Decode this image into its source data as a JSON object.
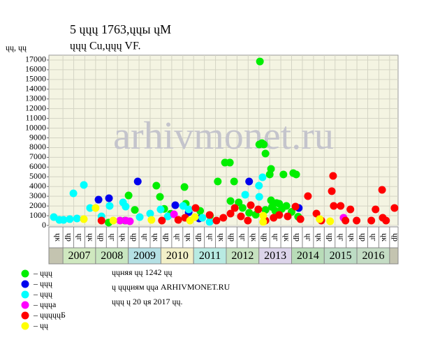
{
  "chart_data": {
    "type": "scatter",
    "title": "5 ųųų 1763,ųųы ųМ",
    "subtitle": "ųųų Cu,ųųų VF.",
    "y_unit_label": "ųų, ųų",
    "watermark": "arhivmonet.ru",
    "xlim": [
      2006.57,
      2017.26
    ],
    "ylim": [
      0,
      17500
    ],
    "yticks": [
      0,
      1000,
      2000,
      3000,
      4000,
      5000,
      6000,
      7000,
      8000,
      9000,
      10000,
      11000,
      12000,
      13000,
      14000,
      15000,
      16000,
      17000
    ],
    "xticks": [
      2007,
      2007.33,
      2007.67,
      2008,
      2008.33,
      2008.67,
      2009,
      2009.33,
      2009.67,
      2010,
      2010.33,
      2010.67,
      2011,
      2011.33,
      2011.67,
      2012,
      2012.33,
      2012.67,
      2013,
      2013.33,
      2013.67,
      2014,
      2014.33,
      2014.67,
      2015,
      2015.33,
      2015.67,
      2016,
      2016.33,
      2016.67,
      2017
    ],
    "grid": true,
    "period_x": [
      2006.83,
      2007.17,
      2007.5,
      2007.83,
      2008.17,
      2008.5,
      2008.83,
      2009.17,
      2009.5,
      2009.83,
      2010.17,
      2010.5,
      2010.83,
      2011.17,
      2011.5,
      2011.83,
      2012.17,
      2012.5,
      2012.83,
      2013.17,
      2013.5,
      2013.83,
      2014.17,
      2014.5,
      2014.83,
      2015.17,
      2015.5,
      2015.83,
      2016.17,
      2016.5,
      2016.83,
      2017.17
    ],
    "period_labels": [
      "ųк",
      "ųр",
      "ųг",
      "ųк",
      "ųр",
      "ųг",
      "ųк",
      "ųр",
      "ųг",
      "ųк",
      "ųр",
      "ųг",
      "ųк",
      "ųр",
      "ųг",
      "ųк",
      "ųр",
      "ųг",
      "ųк",
      "ųр",
      "ųг",
      "ųк",
      "ųр",
      "ųг",
      "ųк",
      "ųр",
      "ųг",
      "ųк",
      "ųр",
      "ųг",
      "ųк",
      "ųр"
    ],
    "years": [
      2007,
      2008,
      2009,
      2010,
      2011,
      2012,
      2013,
      2014,
      2015,
      2016
    ],
    "year_colors": [
      "#cfe8bf",
      "#c8e6c0",
      "#b4e0e4",
      "#f2f0c8",
      "#b8eae2",
      "#c6e2c0",
      "#dcd4ea",
      "#b8dcb8",
      "#bcdcc4",
      "#c4dcc4"
    ],
    "series": [
      {
        "name": "– ųųų",
        "color": "#00ee00",
        "x": [
          2013.03,
          2013.09,
          2013.15,
          2013.01,
          2013.2,
          2011.96,
          2012.11,
          2013.37,
          2013.33,
          2013.75,
          2014.05,
          2014.14,
          2011.74,
          2012.24,
          2009.86,
          2010.72,
          2009.01,
          2009.97,
          2010.76,
          2013.37,
          2012.13,
          2012.38,
          2013.54,
          2013.62,
          2013.84,
          2008.9,
          2010.3,
          2011.5,
          2012.5,
          2012.7,
          2013.4,
          2013.5,
          2014.0,
          2014.2,
          2009.2,
          2010.1,
          2011.2,
          2012.9,
          2013.2,
          2013.7,
          2008.4
        ],
        "values": [
          16850,
          8460,
          8320,
          8320,
          7390,
          6460,
          6460,
          5810,
          5240,
          5240,
          5380,
          5240,
          4520,
          4520,
          4090,
          3950,
          3080,
          2940,
          2230,
          2580,
          2510,
          2370,
          2300,
          2230,
          2010,
          500,
          1200,
          1000,
          1800,
          1300,
          1900,
          1500,
          1400,
          900,
          1600,
          1700,
          1500,
          1100,
          1600,
          1700,
          300
        ]
      },
      {
        "name": "– ųųų",
        "color": "#0000ee",
        "x": [
          2008.09,
          2008.41,
          2009.29,
          2010.44,
          2010.85,
          2012.7,
          2014.22,
          2011.17
        ],
        "values": [
          2650,
          2800,
          4520,
          2080,
          1360,
          4520,
          1790,
          720
        ]
      },
      {
        "name": "– ųųų",
        "color": "#00ffff",
        "x": [
          2006.72,
          2007.32,
          2007.64,
          2013.11,
          2013.0,
          2012.58,
          2013.01,
          2008.84,
          2007.83,
          2008.43,
          2007.02,
          2007.21,
          2008.92,
          2009.99,
          2010.68,
          2010.85,
          2011.49,
          2006.89,
          2007.43,
          2008.18,
          2009.35,
          2010.21,
          2009.67,
          2011.27
        ],
        "values": [
          860,
          3300,
          4160,
          4950,
          4090,
          3160,
          2940,
          2370,
          1790,
          2010,
          570,
          650,
          1940,
          1650,
          2010,
          1650,
          360,
          570,
          720,
          930,
          860,
          930,
          1220,
          790
        ]
      },
      {
        "name": "– ųųųа",
        "color": "#ff00ff",
        "x": [
          2008.75,
          2008.92,
          2009.05,
          2010.4,
          2015.59
        ],
        "values": [
          500,
          500,
          430,
          1150,
          790
        ]
      },
      {
        "name": "– ųųųųųБ",
        "color": "#ff0000",
        "x": [
          2015.27,
          2015.23,
          2016.77,
          2017.15,
          2014.5,
          2014.12,
          2012.75,
          2015.29,
          2015.5,
          2015.8,
          2016.57,
          2012.98,
          2012.26,
          2011.06,
          2008.18,
          2010.03,
          2010.53,
          2011.49,
          2011.91,
          2012.13,
          2012.45,
          2013.45,
          2013.62,
          2013.88,
          2014.27,
          2014.76,
          2014.91,
          2015.65,
          2015.99,
          2016.44,
          2016.79,
          2016.89,
          2012.66,
          2013.2,
          2011.7,
          2010.74
        ],
        "values": [
          5090,
          3520,
          3660,
          1790,
          3010,
          1940,
          2080,
          2010,
          2010,
          1650,
          1650,
          1650,
          1790,
          1790,
          500,
          500,
          570,
          1080,
          790,
          1220,
          930,
          790,
          1080,
          930,
          650,
          1220,
          500,
          500,
          500,
          500,
          790,
          500,
          500,
          500,
          500,
          790
        ]
      },
      {
        "name": "– ųų",
        "color": "#ffff00",
        "x": [
          2007.64,
          2008.0,
          2008.54,
          2009.71,
          2010.89,
          2011.04,
          2013.13,
          2013.13,
          2014.86,
          2015.18
        ],
        "values": [
          650,
          1790,
          500,
          570,
          500,
          860,
          1000,
          360,
          650,
          430
        ]
      }
    ],
    "notes": [
      "ųųняя ųų 1242 ųų",
      "ų ųųųиям ųųа ARHIVMONET.RU",
      "ųųų ų 20 ųя 2017 ųų."
    ]
  }
}
